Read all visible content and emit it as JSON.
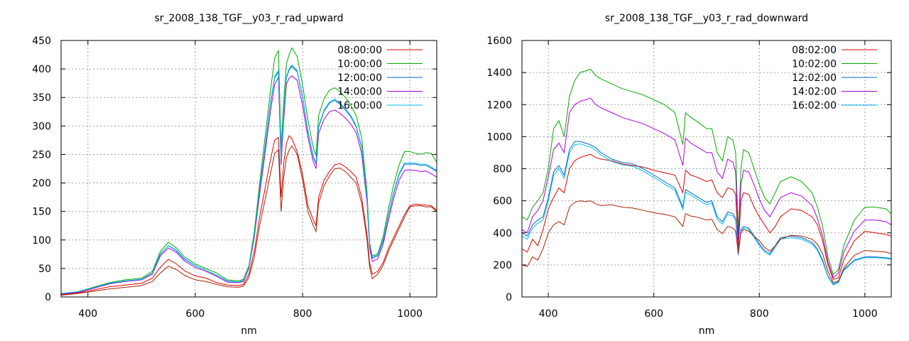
{
  "chart_data": [
    {
      "type": "line",
      "title": "sr_2008_138_TGF__y03_r_rad_upward",
      "xlabel": "nm",
      "ylabel": "",
      "xlim": [
        350,
        1050
      ],
      "ylim": [
        0,
        450
      ],
      "xticks": [
        400,
        600,
        800,
        1000
      ],
      "yticks": [
        0,
        50,
        100,
        150,
        200,
        250,
        300,
        350,
        400,
        450
      ],
      "grid": true,
      "legend_position": "top-right",
      "x": [
        350,
        380,
        410,
        440,
        470,
        500,
        520,
        535,
        550,
        565,
        580,
        600,
        620,
        640,
        660,
        680,
        690,
        700,
        710,
        720,
        730,
        740,
        748,
        755,
        760,
        765,
        770,
        775,
        780,
        790,
        800,
        810,
        820,
        825,
        830,
        840,
        850,
        860,
        870,
        880,
        890,
        900,
        910,
        920,
        925,
        930,
        940,
        950,
        960,
        970,
        980,
        990,
        1000,
        1010,
        1020,
        1030,
        1040,
        1050
      ],
      "series": [
        {
          "name": "08:00:00",
          "color": "#dd0000",
          "values": [
            4,
            7,
            12,
            18,
            21,
            24,
            33,
            52,
            66,
            58,
            46,
            37,
            33,
            25,
            21,
            20,
            22,
            40,
            80,
            140,
            190,
            240,
            275,
            280,
            175,
            235,
            270,
            283,
            278,
            255,
            215,
            160,
            135,
            125,
            175,
            205,
            220,
            232,
            234,
            228,
            220,
            210,
            175,
            110,
            60,
            40,
            45,
            60,
            85,
            105,
            125,
            145,
            160,
            163,
            162,
            161,
            160,
            152
          ]
        },
        {
          "name": "10:00:00",
          "color": "#00aa00",
          "values": [
            6,
            9,
            17,
            25,
            30,
            33,
            45,
            80,
            96,
            86,
            70,
            58,
            50,
            42,
            30,
            28,
            31,
            55,
            115,
            200,
            280,
            360,
            420,
            432,
            260,
            345,
            410,
            425,
            437,
            422,
            372,
            310,
            262,
            248,
            318,
            348,
            363,
            367,
            360,
            350,
            336,
            318,
            280,
            185,
            95,
            72,
            76,
            105,
            155,
            198,
            232,
            255,
            255,
            252,
            250,
            253,
            252,
            236
          ]
        },
        {
          "name": "12:00:00",
          "color": "#0066cc",
          "values": [
            6,
            9,
            16,
            24,
            28,
            31,
            42,
            75,
            90,
            81,
            66,
            55,
            47,
            38,
            28,
            26,
            29,
            52,
            108,
            188,
            262,
            338,
            385,
            395,
            240,
            322,
            385,
            398,
            405,
            395,
            350,
            290,
            245,
            233,
            298,
            326,
            340,
            345,
            338,
            328,
            316,
            298,
            262,
            172,
            90,
            68,
            72,
            98,
            143,
            183,
            215,
            233,
            233,
            233,
            231,
            231,
            226,
            220
          ]
        },
        {
          "name": "14:00:00",
          "color": "#aa00dd",
          "values": [
            5,
            8,
            15,
            23,
            27,
            30,
            40,
            72,
            86,
            78,
            63,
            52,
            45,
            36,
            26,
            25,
            27,
            50,
            104,
            180,
            252,
            325,
            373,
            385,
            232,
            312,
            374,
            384,
            388,
            380,
            336,
            280,
            237,
            225,
            287,
            312,
            325,
            328,
            322,
            314,
            303,
            288,
            252,
            166,
            86,
            62,
            67,
            92,
            135,
            174,
            205,
            222,
            223,
            222,
            220,
            221,
            216,
            210
          ]
        },
        {
          "name": "16:00:00",
          "color": "#00bbee",
          "values": [
            6,
            9,
            16,
            24,
            28,
            31,
            42,
            76,
            90,
            82,
            67,
            55,
            47,
            38,
            28,
            26,
            29,
            52,
            108,
            190,
            264,
            340,
            387,
            397,
            242,
            324,
            387,
            400,
            407,
            397,
            352,
            292,
            247,
            235,
            300,
            328,
            342,
            347,
            340,
            330,
            318,
            300,
            264,
            174,
            92,
            70,
            74,
            100,
            145,
            185,
            217,
            235,
            235,
            235,
            233,
            233,
            228,
            222
          ]
        },
        {
          "name": "",
          "color": "#aa2200",
          "values": [
            3,
            6,
            10,
            14,
            17,
            20,
            27,
            42,
            54,
            48,
            38,
            30,
            27,
            22,
            18,
            17,
            19,
            34,
            70,
            125,
            170,
            215,
            252,
            258,
            150,
            210,
            245,
            258,
            265,
            250,
            205,
            150,
            125,
            115,
            165,
            195,
            212,
            225,
            226,
            220,
            210,
            200,
            165,
            100,
            52,
            32,
            40,
            55,
            80,
            100,
            120,
            140,
            158,
            160,
            160,
            158,
            158,
            150
          ]
        }
      ]
    },
    {
      "type": "line",
      "title": "sr_2008_138_TGF__y03_r_rad_downward",
      "xlabel": "nm",
      "ylabel": "",
      "xlim": [
        350,
        1050
      ],
      "ylim": [
        0,
        1600
      ],
      "xticks": [
        400,
        600,
        800,
        1000
      ],
      "yticks": [
        0,
        200,
        400,
        600,
        800,
        1000,
        1200,
        1400,
        1600
      ],
      "grid": true,
      "legend_position": "top-right",
      "x": [
        350,
        360,
        370,
        380,
        390,
        400,
        410,
        420,
        430,
        440,
        450,
        460,
        470,
        480,
        490,
        500,
        520,
        540,
        560,
        580,
        600,
        620,
        640,
        655,
        660,
        670,
        680,
        700,
        710,
        720,
        730,
        740,
        750,
        755,
        760,
        765,
        770,
        780,
        790,
        800,
        810,
        820,
        830,
        840,
        860,
        880,
        900,
        910,
        920,
        930,
        940,
        950,
        960,
        980,
        1000,
        1020,
        1040,
        1050
      ],
      "series": [
        {
          "name": "08:02:00",
          "color": "#dd0000",
          "values": [
            300,
            280,
            360,
            320,
            420,
            550,
            620,
            680,
            650,
            800,
            850,
            870,
            880,
            890,
            870,
            860,
            850,
            830,
            820,
            810,
            790,
            775,
            760,
            650,
            790,
            760,
            750,
            720,
            730,
            650,
            620,
            680,
            670,
            640,
            300,
            600,
            650,
            640,
            560,
            500,
            450,
            400,
            440,
            500,
            550,
            540,
            500,
            450,
            350,
            200,
            110,
            120,
            230,
            350,
            410,
            400,
            390,
            380
          ]
        },
        {
          "name": "10:02:00",
          "color": "#00aa00",
          "values": [
            500,
            480,
            560,
            600,
            650,
            800,
            1050,
            1100,
            1000,
            1250,
            1350,
            1400,
            1410,
            1420,
            1380,
            1360,
            1330,
            1300,
            1280,
            1260,
            1230,
            1200,
            1150,
            950,
            1150,
            1120,
            1100,
            1050,
            1050,
            900,
            850,
            1000,
            980,
            900,
            400,
            800,
            920,
            900,
            800,
            700,
            620,
            580,
            650,
            720,
            750,
            720,
            650,
            560,
            440,
            250,
            140,
            170,
            320,
            480,
            560,
            560,
            550,
            520
          ]
        },
        {
          "name": "12:02:00",
          "color": "#0066cc",
          "values": [
            400,
            380,
            450,
            480,
            500,
            620,
            780,
            820,
            760,
            920,
            970,
            970,
            960,
            950,
            930,
            900,
            860,
            840,
            830,
            800,
            760,
            720,
            680,
            560,
            670,
            650,
            630,
            590,
            600,
            500,
            470,
            530,
            520,
            490,
            270,
            420,
            440,
            430,
            380,
            330,
            290,
            270,
            320,
            370,
            380,
            370,
            340,
            300,
            230,
            130,
            80,
            95,
            170,
            230,
            250,
            250,
            245,
            240
          ]
        },
        {
          "name": "14:02:00",
          "color": "#aa00dd",
          "values": [
            420,
            400,
            500,
            540,
            600,
            750,
            920,
            960,
            900,
            1150,
            1200,
            1220,
            1230,
            1240,
            1200,
            1180,
            1150,
            1120,
            1100,
            1080,
            1050,
            1020,
            980,
            820,
            990,
            960,
            940,
            900,
            900,
            780,
            740,
            860,
            840,
            780,
            350,
            700,
            790,
            780,
            700,
            610,
            540,
            500,
            560,
            620,
            650,
            630,
            570,
            490,
            380,
            220,
            120,
            150,
            280,
            410,
            480,
            480,
            470,
            450
          ]
        },
        {
          "name": "16:02:00",
          "color": "#00bbee",
          "values": [
            380,
            360,
            430,
            460,
            480,
            600,
            760,
            800,
            740,
            900,
            950,
            955,
            945,
            935,
            915,
            885,
            845,
            825,
            815,
            785,
            745,
            705,
            665,
            545,
            655,
            635,
            615,
            575,
            585,
            485,
            455,
            515,
            505,
            475,
            260,
            410,
            430,
            420,
            370,
            320,
            280,
            260,
            310,
            360,
            370,
            360,
            330,
            290,
            220,
            125,
            75,
            90,
            165,
            225,
            245,
            245,
            240,
            235
          ]
        },
        {
          "name": "",
          "color": "#aa2200",
          "values": [
            200,
            190,
            250,
            230,
            300,
            400,
            450,
            470,
            450,
            560,
            590,
            600,
            595,
            600,
            580,
            570,
            575,
            560,
            555,
            540,
            525,
            515,
            500,
            440,
            520,
            505,
            500,
            480,
            485,
            420,
            395,
            440,
            430,
            410,
            270,
            400,
            420,
            410,
            380,
            350,
            310,
            285,
            320,
            360,
            385,
            380,
            360,
            330,
            270,
            160,
            90,
            100,
            180,
            260,
            290,
            285,
            280,
            270
          ]
        }
      ]
    }
  ]
}
